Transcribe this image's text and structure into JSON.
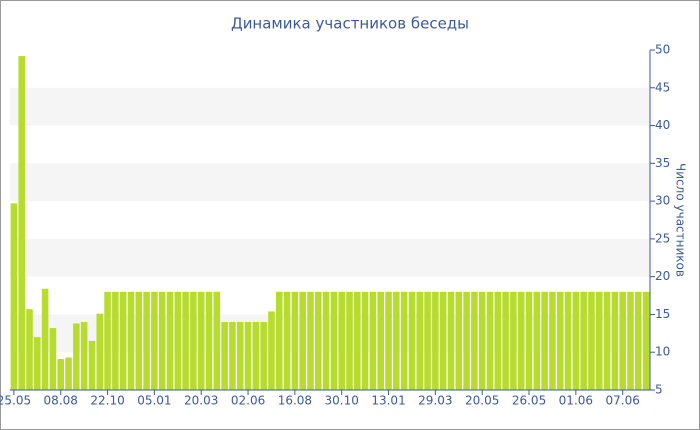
{
  "chart_data": {
    "type": "bar",
    "title": "Динамика участников беседы",
    "y_label": "Число участников",
    "categories": [
      "25.05",
      null,
      null,
      null,
      null,
      null,
      "08.08",
      null,
      null,
      null,
      null,
      null,
      "22.10",
      null,
      null,
      null,
      null,
      null,
      "05.01",
      null,
      null,
      null,
      null,
      null,
      "20.03",
      null,
      null,
      null,
      null,
      null,
      "02.06",
      null,
      null,
      null,
      null,
      null,
      "16.08",
      null,
      null,
      null,
      null,
      null,
      "30.10",
      null,
      null,
      null,
      null,
      null,
      "13.01",
      null,
      null,
      null,
      null,
      null,
      "29.03",
      null,
      null,
      null,
      null,
      null,
      "20.05",
      null,
      null,
      null,
      null,
      null,
      "26.05",
      null,
      null,
      null,
      null,
      null,
      "01.06",
      null,
      null,
      null,
      null,
      null,
      "07.06",
      null,
      null,
      null
    ],
    "values": [
      29.7,
      49.2,
      15.7,
      12,
      18.4,
      13.2,
      9.1,
      9.3,
      13.8,
      14,
      11.5,
      15.1,
      18,
      18,
      18,
      18,
      18,
      18,
      18,
      18,
      18,
      18,
      18,
      18,
      18,
      18,
      18,
      14,
      14,
      14,
      14,
      14,
      14,
      15.4,
      18,
      18,
      18,
      18,
      18,
      18,
      18,
      18,
      18,
      18,
      18,
      18,
      18,
      18,
      18,
      18,
      18,
      18,
      18,
      18,
      18,
      18,
      18,
      18,
      18,
      18,
      18,
      18,
      18,
      18,
      18,
      18,
      18,
      18,
      18,
      18,
      18,
      18,
      18,
      18,
      18,
      18,
      18,
      18,
      18,
      18,
      18,
      18
    ],
    "color": "#b8dc2e",
    "ylim": [
      5,
      50
    ],
    "yticks": [
      5,
      10,
      15,
      20,
      25,
      30,
      35,
      40,
      45,
      50
    ],
    "y_axis_side": "right",
    "grid": "bands"
  }
}
